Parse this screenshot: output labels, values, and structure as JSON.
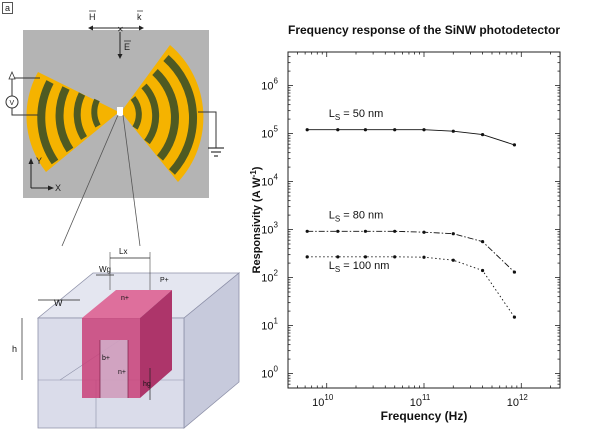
{
  "panel_label": "a",
  "antenna": {
    "field_h": "H",
    "field_k": "k",
    "field_e": "E",
    "axis_y": "Y",
    "axis_x": "X",
    "meter": "V",
    "colors": {
      "background": "#b4b4b4",
      "gold": "#f5b300",
      "green": "#4f5a22"
    }
  },
  "device": {
    "label_lx": "Lx",
    "label_wg": "Wg",
    "label_w": "W",
    "label_h": "h",
    "label_hg": "hg",
    "region_n_top": "n+",
    "region_p_top": "P+",
    "region_b": "b+",
    "region_n_bottom": "n+",
    "colors": {
      "magenta": "#c9457c",
      "box": "#d3d6e6"
    }
  },
  "chart_data": {
    "type": "line",
    "title": "Frequency response of the SiNW photodetector",
    "xlabel": "Frequency (Hz)",
    "ylabel": "Responsivity (A W",
    "ylabel_exp": "-1",
    "ylabel_end": ")",
    "xscale": "log",
    "yscale": "log",
    "xlim": [
      4000000000.0,
      2500000000000.0
    ],
    "ylim": [
      0.5,
      5000000
    ],
    "x_ticks": [
      {
        "base": "10",
        "exp": "10"
      },
      {
        "base": "10",
        "exp": "11"
      },
      {
        "base": "10",
        "exp": "12"
      }
    ],
    "y_ticks": [
      {
        "base": "10",
        "exp": "0"
      },
      {
        "base": "10",
        "exp": "1"
      },
      {
        "base": "10",
        "exp": "2"
      },
      {
        "base": "10",
        "exp": "3"
      },
      {
        "base": "10",
        "exp": "4"
      },
      {
        "base": "10",
        "exp": "5"
      },
      {
        "base": "10",
        "exp": "6"
      }
    ],
    "x": [
      6300000000.0,
      13000000000.0,
      25000000000.0,
      50000000000.0,
      100000000000.0,
      200000000000.0,
      400000000000.0,
      850000000000.0
    ],
    "series": [
      {
        "name": "Ls = 50 nm",
        "label_main": "L",
        "label_sub": "S",
        "label_rest": " = 50 nm",
        "style": "solid",
        "values": [
          120000,
          120000,
          120000,
          120000,
          120000,
          112000,
          95000,
          58000
        ]
      },
      {
        "name": "Ls = 80 nm",
        "label_main": "L",
        "label_sub": "S",
        "label_rest": " = 80 nm",
        "style": "dashdot",
        "values": [
          920,
          920,
          920,
          920,
          880,
          820,
          560,
          130
        ]
      },
      {
        "name": "Ls = 100 nm",
        "label_main": "L",
        "label_sub": "S",
        "label_rest": " = 100 nm",
        "style": "dotted",
        "values": [
          270,
          270,
          270,
          270,
          265,
          230,
          140,
          15
        ]
      }
    ],
    "series_label_values": [
      [
        10000000000.0,
        220000
      ],
      [
        10000000000.0,
        1700
      ],
      [
        10000000000.0,
        150
      ]
    ]
  }
}
